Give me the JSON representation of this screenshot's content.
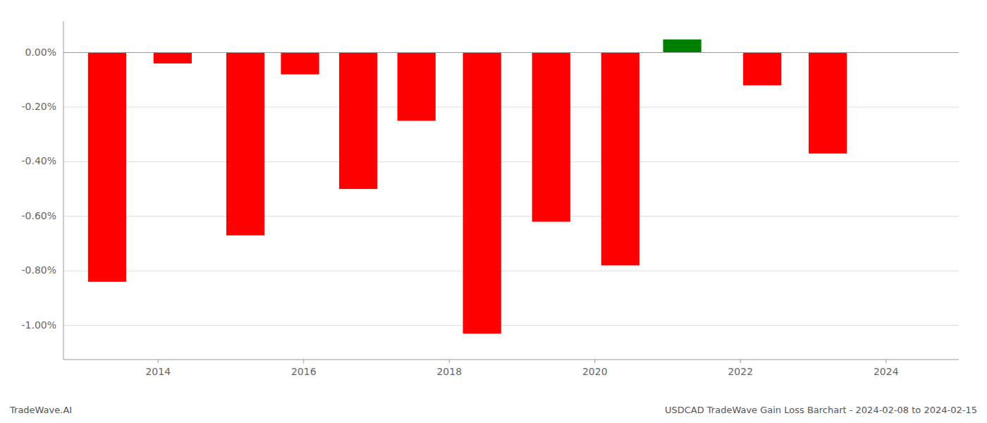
{
  "chart_data": {
    "type": "bar",
    "x": [
      2013.3,
      2014.2,
      2015.2,
      2015.95,
      2016.75,
      2017.55,
      2018.45,
      2019.4,
      2020.35,
      2021.2,
      2022.3,
      2023.2
    ],
    "values": [
      -0.0084,
      -0.0004,
      -0.0067,
      -0.0008,
      -0.005,
      -0.0025,
      -0.0103,
      -0.0062,
      -0.0078,
      0.00048,
      -0.0012,
      -0.0037
    ],
    "colors": [
      "red",
      "red",
      "red",
      "red",
      "red",
      "red",
      "red",
      "red",
      "red",
      "green",
      "red",
      "red"
    ],
    "xlim": [
      2012.7,
      2025.0
    ],
    "xticks": [
      2014,
      2016,
      2018,
      2020,
      2022,
      2024
    ],
    "ylim": [
      -0.01125,
      0.00115
    ],
    "yticks": [
      {
        "value": 0.0,
        "label": "0.00%"
      },
      {
        "value": -0.002,
        "label": "-0.20%"
      },
      {
        "value": -0.004,
        "label": "-0.40%"
      },
      {
        "value": -0.006,
        "label": "-0.60%"
      },
      {
        "value": -0.008,
        "label": "-0.80%"
      },
      {
        "value": -0.01,
        "label": "-1.00%"
      }
    ],
    "grid": true,
    "annotations": [
      "TradeWave.AI",
      "USDCAD TradeWave Gain Loss Barchart - 2024-02-08 to 2024-02-15"
    ]
  }
}
